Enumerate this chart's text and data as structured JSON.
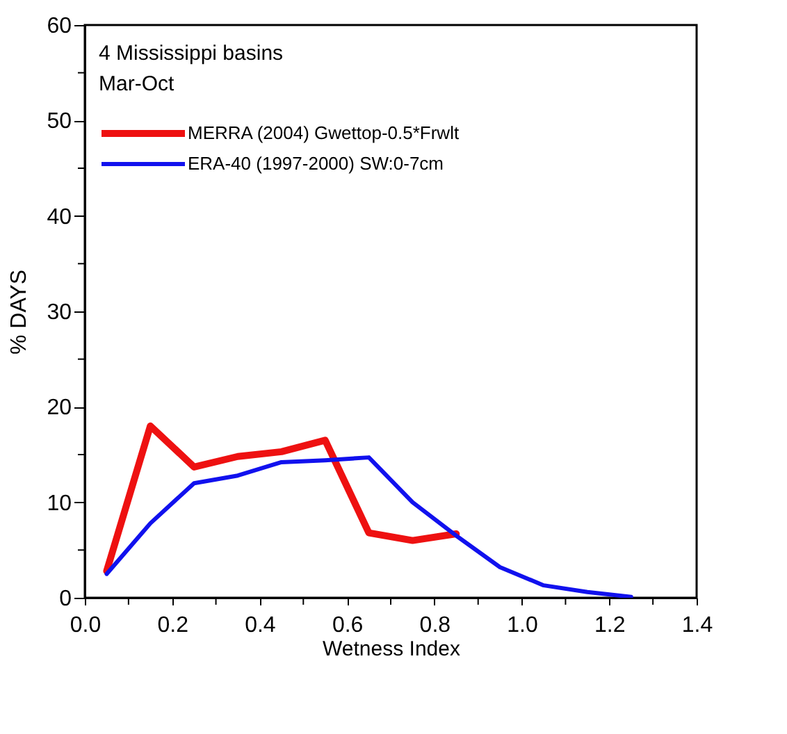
{
  "chart_data": {
    "type": "line",
    "title": "4 Mississippi basins",
    "subtitle": "Mar-Oct",
    "xlabel": "Wetness Index",
    "ylabel": "% DAYS",
    "series": [
      {
        "name": "MERRA (2004) Gwettop-0.5*Frwlt",
        "color": "#ee1111",
        "x": [
          0.05,
          0.15,
          0.25,
          0.35,
          0.45,
          0.55,
          0.65,
          0.75,
          0.85
        ],
        "values": [
          2.8,
          18,
          13.7,
          14.8,
          15.3,
          16.5,
          6.8,
          6.0,
          6.7
        ]
      },
      {
        "name": "ERA-40 (1997-2000) SW:0-7cm",
        "color": "#1111ee",
        "x": [
          0.05,
          0.15,
          0.25,
          0.35,
          0.45,
          0.55,
          0.65,
          0.75,
          0.85,
          0.95,
          1.05,
          1.15,
          1.25
        ],
        "values": [
          2.5,
          7.8,
          12,
          12.8,
          14.2,
          14.4,
          14.7,
          10,
          6.5,
          3.2,
          1.3,
          0.6,
          0.1
        ]
      }
    ],
    "xlim": [
      0,
      1.4
    ],
    "xticks": [
      {
        "value": 0,
        "label": "0.0"
      },
      {
        "value": 0.1,
        "label": null
      },
      0.2,
      {
        "value": 0.3,
        "label": null
      },
      0.4,
      {
        "value": 0.5,
        "label": null
      },
      0.6,
      {
        "value": 0.7,
        "label": null
      },
      0.8,
      {
        "value": 0.9,
        "label": null
      },
      {
        "value": 1.0,
        "label": "1.0"
      },
      {
        "value": 1.1,
        "label": null
      },
      1.2,
      {
        "value": 1.3,
        "label": null
      },
      1.4
    ],
    "ylim": [
      0,
      60
    ],
    "yticks": [
      0,
      {
        "value": 5,
        "label": null
      },
      10,
      {
        "value": 15,
        "label": null
      },
      20,
      {
        "value": 25,
        "label": null
      },
      30,
      {
        "value": 35,
        "label": null
      },
      40,
      {
        "value": 45,
        "label": null
      },
      50,
      {
        "value": 55,
        "label": null
      },
      60
    ],
    "legend": "top left",
    "grid": false,
    "marker": "none",
    "line_style": "solid"
  }
}
